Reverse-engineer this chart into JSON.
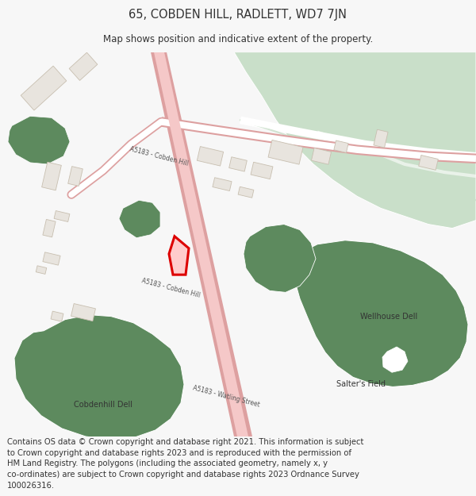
{
  "title": "65, COBDEN HILL, RADLETT, WD7 7JN",
  "subtitle": "Map shows position and indicative extent of the property.",
  "footer_line1": "Contains OS data © Crown copyright and database right 2021. This information is subject",
  "footer_line2": "to Crown copyright and database rights 2023 and is reproduced with the permission of",
  "footer_line3": "HM Land Registry. The polygons (including the associated geometry, namely x, y",
  "footer_line4": "co-ordinates) are subject to Crown copyright and database rights 2023 Ordnance Survey",
  "footer_line5": "100026316.",
  "bg_color": "#f7f7f7",
  "map_bg": "#ffffff",
  "green_dark": "#5d8a5e",
  "green_light": "#c9dfc9",
  "road_fill": "#f5c8c8",
  "road_border": "#dda0a0",
  "bldg_fill": "#e8e4de",
  "bldg_edge": "#c8bfb0",
  "red_fill": "#ffcccc",
  "red_edge": "#dd0000",
  "text_dark": "#333333",
  "text_road": "#555555",
  "title_fs": 10.5,
  "subtitle_fs": 8.5,
  "footer_fs": 7.2,
  "label_fs": 7.0
}
